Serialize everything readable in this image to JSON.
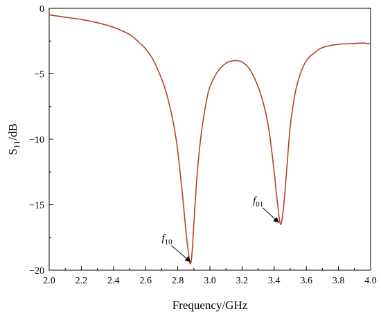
{
  "chart_data": {
    "type": "line",
    "xlabel": "Frequency/GHz",
    "ylabel_main": "S",
    "ylabel_sub": "11",
    "ylabel_unit": "/dB",
    "xlim": [
      2.0,
      4.0
    ],
    "ylim": [
      -20,
      0
    ],
    "x_ticks": [
      "2.0",
      "2.2",
      "2.4",
      "2.6",
      "2.8",
      "3.0",
      "3.2",
      "3.4",
      "3.6",
      "3.8",
      "4.0"
    ],
    "y_ticks": [
      "0",
      "-5",
      "-10",
      "-15",
      "-20"
    ],
    "grid": false,
    "colors": {
      "line": "#b8402a"
    },
    "series": [
      {
        "x": [
          2.0,
          2.1,
          2.2,
          2.3,
          2.4,
          2.5,
          2.55,
          2.6,
          2.65,
          2.7,
          2.73,
          2.76,
          2.79,
          2.81,
          2.83,
          2.85,
          2.87,
          2.88,
          2.89,
          2.9,
          2.92,
          2.94,
          2.96,
          2.98,
          3.0,
          3.05,
          3.1,
          3.15,
          3.2,
          3.25,
          3.3,
          3.34,
          3.37,
          3.4,
          3.42,
          3.44,
          3.46,
          3.48,
          3.5,
          3.53,
          3.56,
          3.6,
          3.65,
          3.7,
          3.8,
          3.9,
          3.95,
          4.0
        ],
        "y": [
          -0.5,
          -0.68,
          -0.85,
          -1.1,
          -1.45,
          -2.0,
          -2.5,
          -3.1,
          -4.0,
          -5.4,
          -6.5,
          -8.0,
          -10.0,
          -12.0,
          -14.3,
          -16.9,
          -19.0,
          -19.5,
          -18.5,
          -16.5,
          -12.8,
          -10.2,
          -8.4,
          -7.0,
          -6.0,
          -4.8,
          -4.2,
          -4.0,
          -4.1,
          -4.7,
          -6.0,
          -7.6,
          -9.5,
          -12.5,
          -14.8,
          -16.5,
          -15.0,
          -12.0,
          -9.0,
          -6.5,
          -5.1,
          -4.0,
          -3.4,
          -3.0,
          -2.75,
          -2.68,
          -2.65,
          -2.72
        ]
      }
    ],
    "annotations": [
      {
        "label_main": "f",
        "label_sub": "10",
        "x": 2.89,
        "y": -19.5
      },
      {
        "label_main": "f",
        "label_sub": "01",
        "x": 3.44,
        "y": -16.5
      }
    ]
  }
}
